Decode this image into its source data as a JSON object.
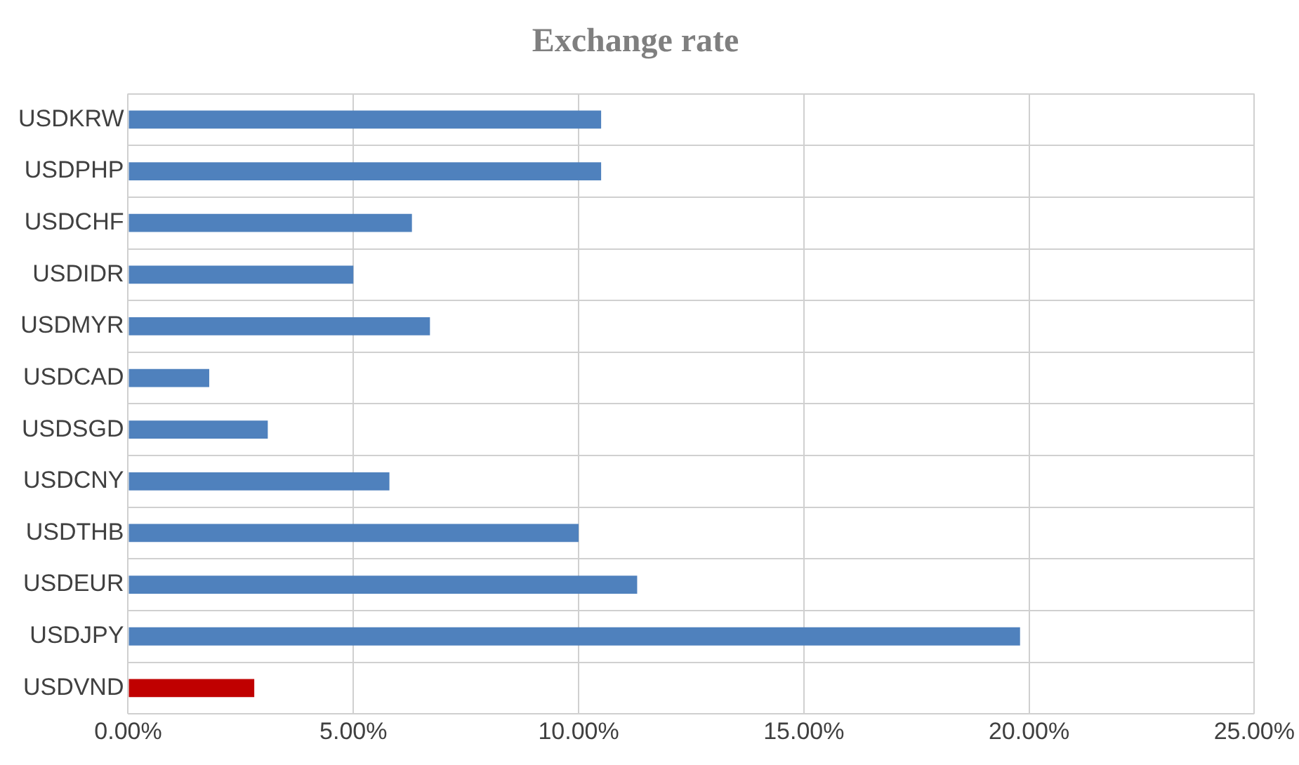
{
  "chart_data": {
    "type": "bar",
    "orientation": "horizontal",
    "title": "Exchange rate",
    "categories": [
      "USDKRW",
      "USDPHP",
      "USDCHF",
      "USDIDR",
      "USDMYR",
      "USDCAD",
      "USDSGD",
      "USDCNY",
      "USDTHB",
      "USDEUR",
      "USDJPY",
      "USDVND"
    ],
    "values": [
      10.5,
      10.5,
      6.3,
      5.0,
      6.7,
      1.8,
      3.1,
      5.8,
      10.0,
      11.3,
      19.8,
      2.8
    ],
    "colors": [
      "#4f81bd",
      "#4f81bd",
      "#4f81bd",
      "#4f81bd",
      "#4f81bd",
      "#4f81bd",
      "#4f81bd",
      "#4f81bd",
      "#4f81bd",
      "#4f81bd",
      "#4f81bd",
      "#c00000"
    ],
    "xlim": [
      0,
      25
    ],
    "xticks": [
      {
        "value": 0,
        "label": "0.00%"
      },
      {
        "value": 5,
        "label": "5.00%"
      },
      {
        "value": 10,
        "label": "10.00%"
      },
      {
        "value": 15,
        "label": "15.00%"
      },
      {
        "value": 20,
        "label": "20.00%"
      },
      {
        "value": 25,
        "label": "25.00%"
      }
    ],
    "grid": true,
    "legend": false
  }
}
